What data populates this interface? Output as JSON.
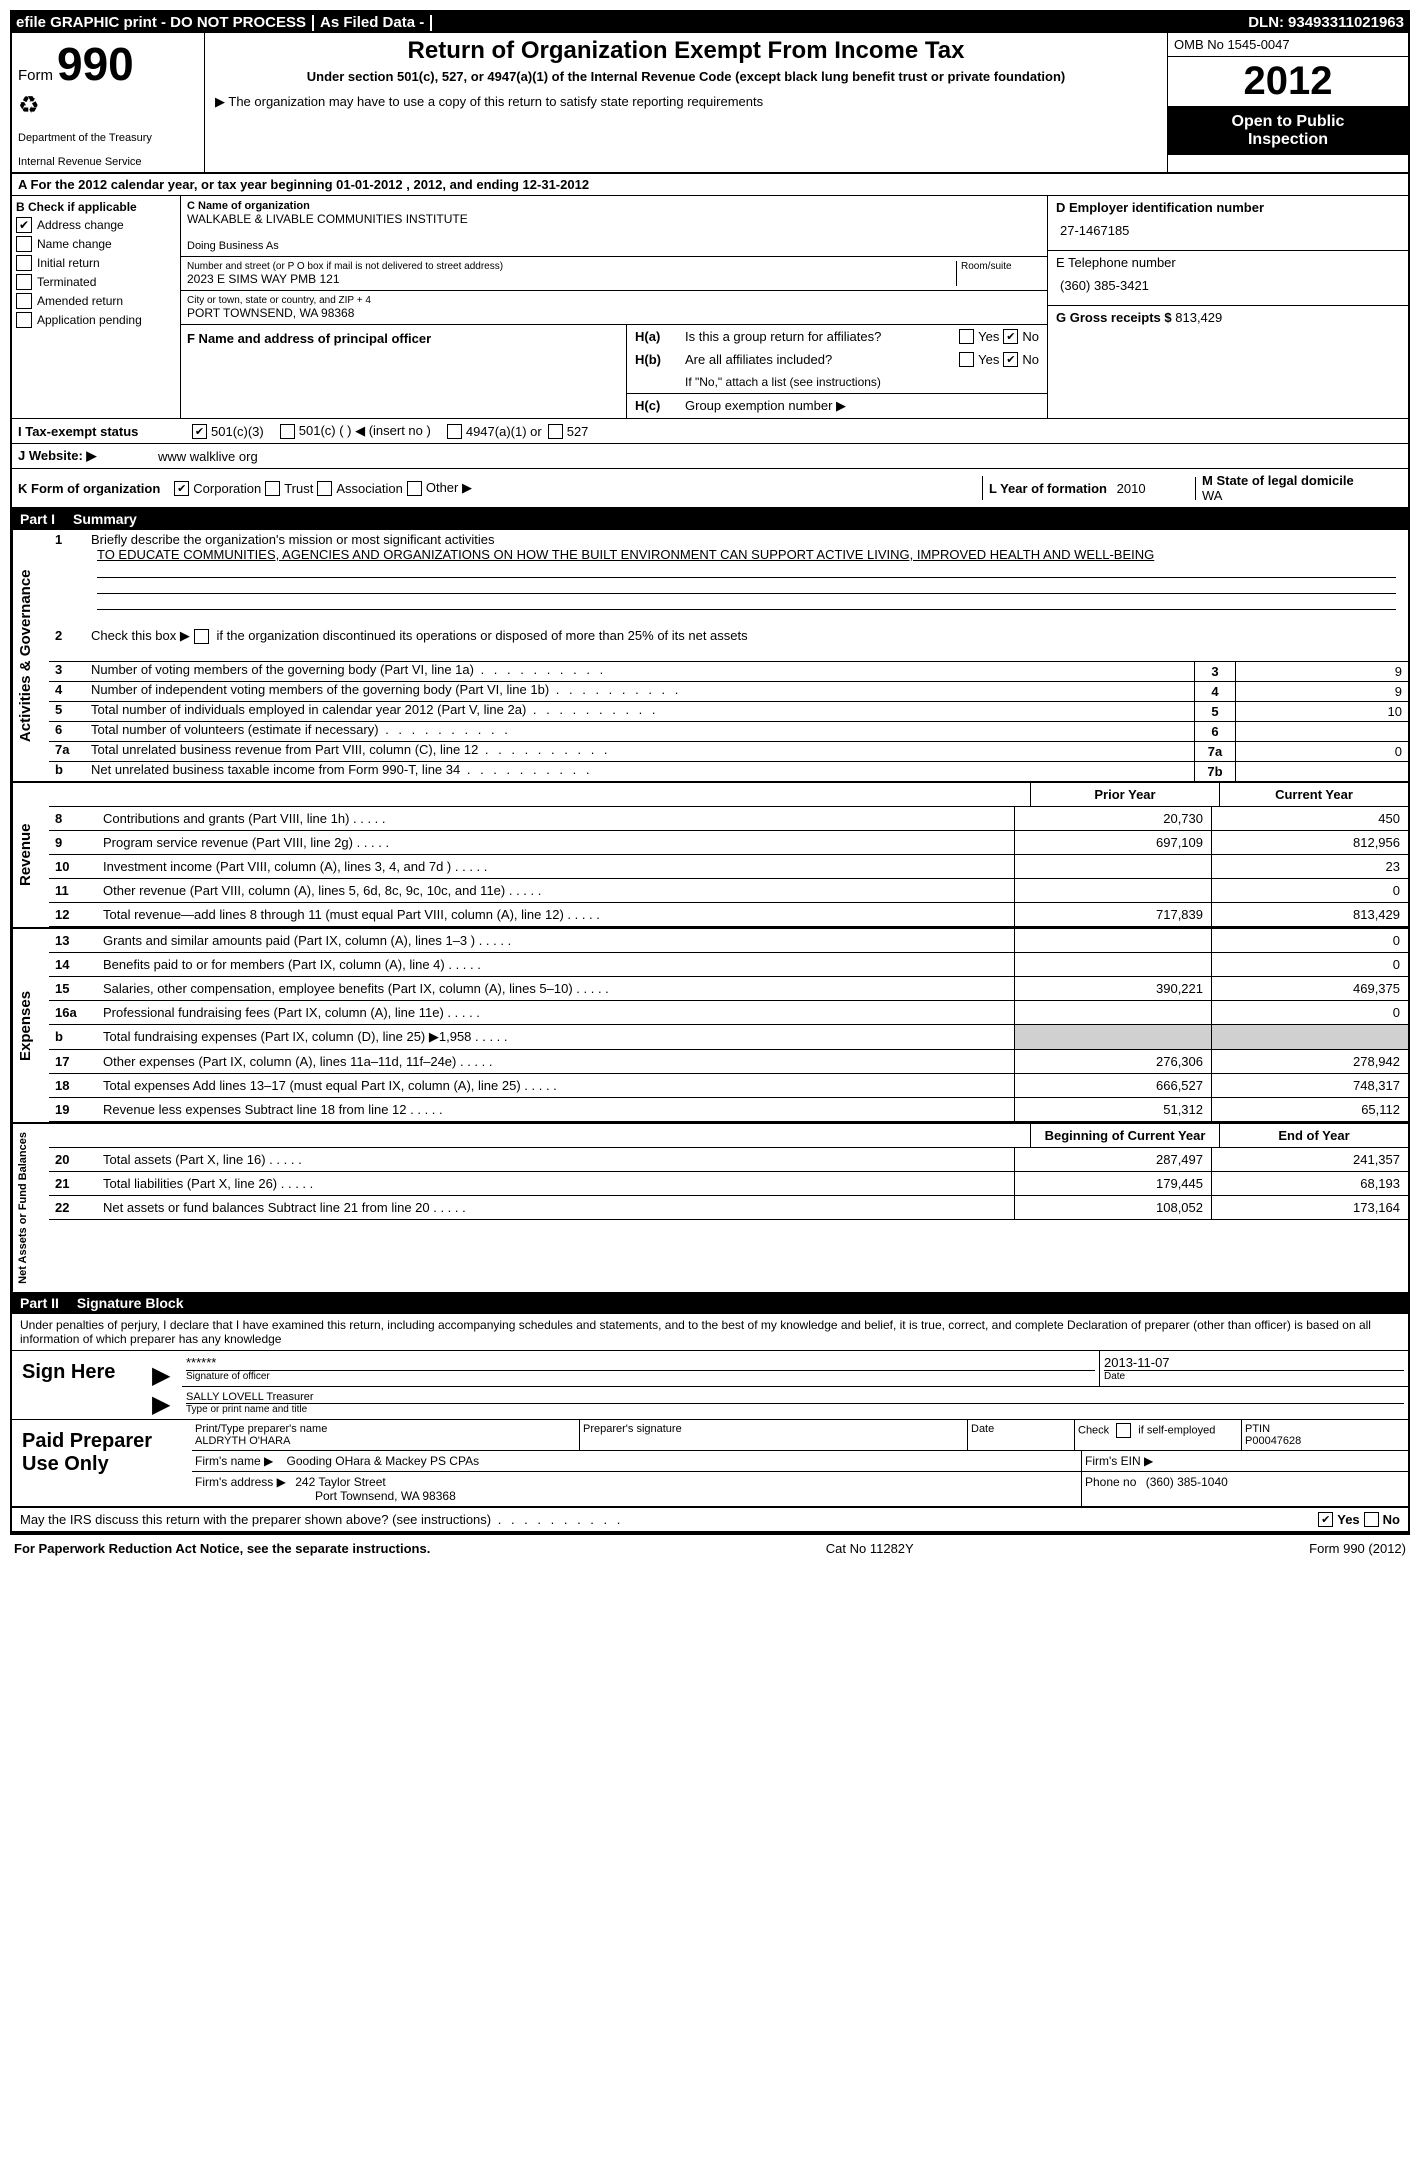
{
  "topbar": {
    "efile": "efile GRAPHIC print - DO NOT PROCESS",
    "asfiled": "As Filed Data -",
    "dln_label": "DLN:",
    "dln": "93493311021963"
  },
  "header": {
    "form_label": "Form",
    "form_num": "990",
    "treasury1": "Department of the Treasury",
    "treasury2": "Internal Revenue Service",
    "title": "Return of Organization Exempt From Income Tax",
    "subtitle": "Under section 501(c), 527, or 4947(a)(1) of the Internal Revenue Code (except black lung benefit trust or private foundation)",
    "copy_note": "▶ The organization may have to use a copy of this return to satisfy state reporting requirements",
    "omb": "OMB No 1545-0047",
    "year": "2012",
    "open1": "Open to Public",
    "open2": "Inspection"
  },
  "section_a": "A For the 2012 calendar year, or tax year beginning 01-01-2012    , 2012, and ending 12-31-2012",
  "col_b": {
    "title": "B Check if applicable",
    "addr_change": "Address change",
    "name_change": "Name change",
    "initial": "Initial return",
    "terminated": "Terminated",
    "amended": "Amended return",
    "pending": "Application pending"
  },
  "col_c": {
    "name_label": "C Name of organization",
    "name": "WALKABLE & LIVABLE COMMUNITIES INSTITUTE",
    "dba_label": "Doing Business As",
    "dba": "",
    "street_label": "Number and street (or P O  box if mail is not delivered to street address)",
    "room_label": "Room/suite",
    "street": "2023 E SIMS WAY PMB 121",
    "city_label": "City or town, state or country, and ZIP + 4",
    "city": "PORT TOWNSEND, WA  98368",
    "f_label": "F   Name and address of principal officer",
    "f_value": ""
  },
  "col_d": {
    "d_label": "D Employer identification number",
    "ein": "27-1467185",
    "e_label": "E Telephone number",
    "phone": "(360) 385-3421",
    "g_label": "G Gross receipts $",
    "g_value": "813,429"
  },
  "col_h": {
    "ha_label": "H(a)  Is this a group return for affiliates?",
    "hb_label": "H(b)  Are all affiliates included?",
    "hb_note": "If \"No,\" attach a list  (see instructions)",
    "hc_label": "H(c)   Group exemption number ▶",
    "yes": "Yes",
    "no": "No"
  },
  "row_i": {
    "label": "I   Tax-exempt status",
    "c3": "501(c)(3)",
    "c": "501(c) (  ) ◀ (insert no )",
    "a1": "4947(a)(1) or",
    "527": "527"
  },
  "row_j": {
    "label": "J  Website: ▶",
    "value": "www walklive org"
  },
  "row_k": {
    "label": "K Form of organization",
    "corp": "Corporation",
    "trust": "Trust",
    "assoc": "Association",
    "other": "Other ▶",
    "l_label": "L Year of formation",
    "l_value": "2010",
    "m_label": "M State of legal domicile",
    "m_value": "WA"
  },
  "part1": {
    "num": "Part I",
    "title": "Summary"
  },
  "summary": {
    "l1_label": "Briefly describe the organization's mission or most significant activities",
    "l1_text": "TO EDUCATE COMMUNITIES, AGENCIES AND ORGANIZATIONS ON HOW THE BUILT ENVIRONMENT CAN SUPPORT ACTIVE LIVING, IMPROVED HEALTH AND WELL-BEING",
    "l2": "Check this box ▶      if the organization discontinued its operations or disposed of more than 25% of its net assets",
    "l3": "Number of voting members of the governing body (Part VI, line 1a)",
    "l3v": "9",
    "l4": "Number of independent voting members of the governing body (Part VI, line 1b)",
    "l4v": "9",
    "l5": "Total number of individuals employed in calendar year 2012 (Part V, line 2a)",
    "l5v": "10",
    "l6": "Total number of volunteers (estimate if necessary)",
    "l6v": "",
    "l7a": "Total unrelated business revenue from Part VIII, column (C), line 12",
    "l7av": "0",
    "l7b": "Net unrelated business taxable income from Form 990-T, line 34",
    "l7bv": ""
  },
  "rev_headers": {
    "prior": "Prior Year",
    "current": "Current Year",
    "begin": "Beginning of Current Year",
    "end": "End of Year"
  },
  "revenue": [
    {
      "n": "8",
      "d": "Contributions and grants (Part VIII, line 1h)",
      "p": "20,730",
      "c": "450"
    },
    {
      "n": "9",
      "d": "Program service revenue (Part VIII, line 2g)",
      "p": "697,109",
      "c": "812,956"
    },
    {
      "n": "10",
      "d": "Investment income (Part VIII, column (A), lines 3, 4, and 7d )",
      "p": "",
      "c": "23"
    },
    {
      "n": "11",
      "d": "Other revenue (Part VIII, column (A), lines 5, 6d, 8c, 9c, 10c, and 11e)",
      "p": "",
      "c": "0"
    },
    {
      "n": "12",
      "d": "Total revenue—add lines 8 through 11 (must equal Part VIII, column (A), line 12)",
      "p": "717,839",
      "c": "813,429"
    }
  ],
  "expenses": [
    {
      "n": "13",
      "d": "Grants and similar amounts paid (Part IX, column (A), lines 1–3 )",
      "p": "",
      "c": "0"
    },
    {
      "n": "14",
      "d": "Benefits paid to or for members (Part IX, column (A), line 4)",
      "p": "",
      "c": "0"
    },
    {
      "n": "15",
      "d": "Salaries, other compensation, employee benefits (Part IX, column (A), lines 5–10)",
      "p": "390,221",
      "c": "469,375"
    },
    {
      "n": "16a",
      "d": "Professional fundraising fees (Part IX, column (A), line 11e)",
      "p": "",
      "c": "0"
    },
    {
      "n": "b",
      "d": "Total fundraising expenses (Part IX, column (D), line 25) ▶1,958",
      "p": "GRAY",
      "c": "GRAY"
    },
    {
      "n": "17",
      "d": "Other expenses (Part IX, column (A), lines 11a–11d, 11f–24e)",
      "p": "276,306",
      "c": "278,942"
    },
    {
      "n": "18",
      "d": "Total expenses  Add lines 13–17 (must equal Part IX, column (A), line 25)",
      "p": "666,527",
      "c": "748,317"
    },
    {
      "n": "19",
      "d": "Revenue less expenses  Subtract line 18 from line 12",
      "p": "51,312",
      "c": "65,112"
    }
  ],
  "netassets": [
    {
      "n": "20",
      "d": "Total assets (Part X, line 16)",
      "p": "287,497",
      "c": "241,357"
    },
    {
      "n": "21",
      "d": "Total liabilities (Part X, line 26)",
      "p": "179,445",
      "c": "68,193"
    },
    {
      "n": "22",
      "d": "Net assets or fund balances  Subtract line 21 from line 20",
      "p": "108,052",
      "c": "173,164"
    }
  ],
  "sidelabels": {
    "gov": "Activities & Governance",
    "rev": "Revenue",
    "exp": "Expenses",
    "net": "Net Assets or Fund Balances"
  },
  "part2": {
    "num": "Part II",
    "title": "Signature Block"
  },
  "sig": {
    "perjury": "Under penalties of perjury, I declare that I have examined this return, including accompanying schedules and statements, and to the best of my knowledge and belief, it is true, correct, and complete  Declaration of preparer (other than officer) is based on all information of which preparer has any knowledge",
    "sign_here": "Sign Here",
    "stars": "******",
    "sig_officer": "Signature of officer",
    "date_label": "Date",
    "date": "2013-11-07",
    "name": "SALLY LOVELL Treasurer",
    "name_label": "Type or print name and title",
    "paid": "Paid Preparer Use Only",
    "prep_name_label": "Print/Type preparer's name",
    "prep_name": "ALDRYTH O'HARA",
    "prep_sig_label": "Preparer's signature",
    "check_self": "Check        if self-employed",
    "ptin_label": "PTIN",
    "ptin": "P00047628",
    "firm_name_label": "Firm's name    ▶",
    "firm_name": "Gooding OHara & Mackey PS CPAs",
    "firm_ein_label": "Firm's EIN ▶",
    "firm_addr_label": "Firm's address ▶",
    "firm_addr1": "242 Taylor Street",
    "firm_addr2": "Port Townsend, WA  98368",
    "phone_label": "Phone no",
    "phone": "(360) 385-1040",
    "discuss": "May the IRS discuss this return with the preparer shown above? (see instructions)"
  },
  "footer": {
    "left": "For Paperwork Reduction Act Notice, see the separate instructions.",
    "center": "Cat No  11282Y",
    "right": "Form 990 (2012)"
  }
}
